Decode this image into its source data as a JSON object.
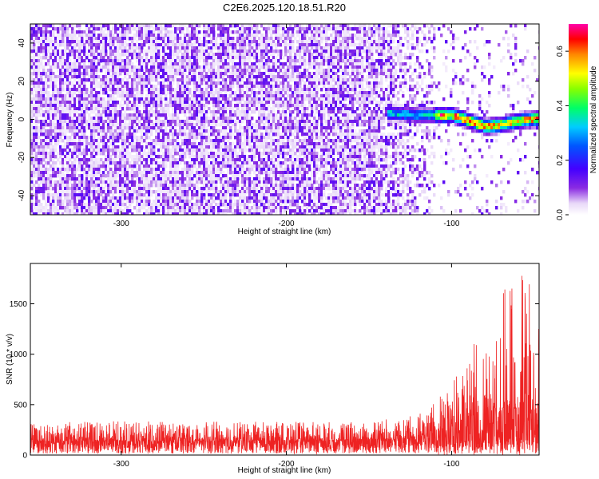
{
  "title": "C2E6.2025.120.18.51.R20",
  "colors": {
    "snr_line": "#ee2222",
    "axis": "#000000",
    "background": "#ffffff"
  },
  "chart_data": [
    {
      "type": "heatmap",
      "title": "C2E6.2025.120.18.51.R20",
      "xlabel": "Height of straight line (km)",
      "ylabel": "Frequency (Hz)",
      "xlim": [
        -355,
        -47
      ],
      "ylim": [
        -50,
        50
      ],
      "x_ticks": [
        -300,
        -200,
        -100
      ],
      "y_ticks": [
        -40,
        -20,
        0,
        20,
        40
      ],
      "colorbar": {
        "label": "Normalized spectral amplitude",
        "range": [
          0,
          0.7
        ],
        "ticks": [
          0.0,
          0.2,
          0.4,
          0.6
        ],
        "colormap": "rainbow (white → purple → blue → cyan → green → yellow → red → magenta)"
      },
      "features": {
        "noise_region": {
          "x_range": [
            -355,
            -110
          ],
          "amplitude": "≈0.05–0.15 (purple noise across all frequencies)"
        },
        "signal_band": {
          "x_range": [
            -140,
            -47
          ],
          "frequency_centers": [
            [
              -140,
              4
            ],
            [
              -120,
              3
            ],
            [
              -100,
              3
            ],
            [
              -90,
              0
            ],
            [
              -80,
              -3
            ],
            [
              -70,
              -2
            ],
            [
              -60,
              0
            ],
            [
              -50,
              1
            ]
          ],
          "frequency_width_hz": 6,
          "peak_amplitude": 0.7
        }
      },
      "grid": false,
      "legend": "colorbar-right"
    },
    {
      "type": "line",
      "xlabel": "Height of straight line (km)",
      "ylabel": "SNR (10 * v/v)",
      "xlim": [
        -355,
        -47
      ],
      "ylim": [
        0,
        1900
      ],
      "x_ticks": [
        -300,
        -200,
        -100
      ],
      "y_ticks": [
        0,
        500,
        1000,
        1500
      ],
      "series": [
        {
          "envelope": {
            "x": [
              -355,
              -300,
              -250,
              -200,
              -150,
              -130,
              -115,
              -108,
              -100,
              -90,
              -80,
              -70,
              -62,
              -55,
              -50,
              -47
            ],
            "baseline": [
              140,
              140,
              140,
              145,
              150,
              160,
              180,
              250,
              300,
              380,
              420,
              470,
              480,
              450,
              450,
              460
            ],
            "max": [
              320,
              340,
              330,
              330,
              340,
              370,
              430,
              560,
              700,
              1000,
              1350,
              1700,
              1880,
              1760,
              1760,
              1550
            ]
          }
        }
      ],
      "grid": false,
      "legend": "none"
    }
  ]
}
